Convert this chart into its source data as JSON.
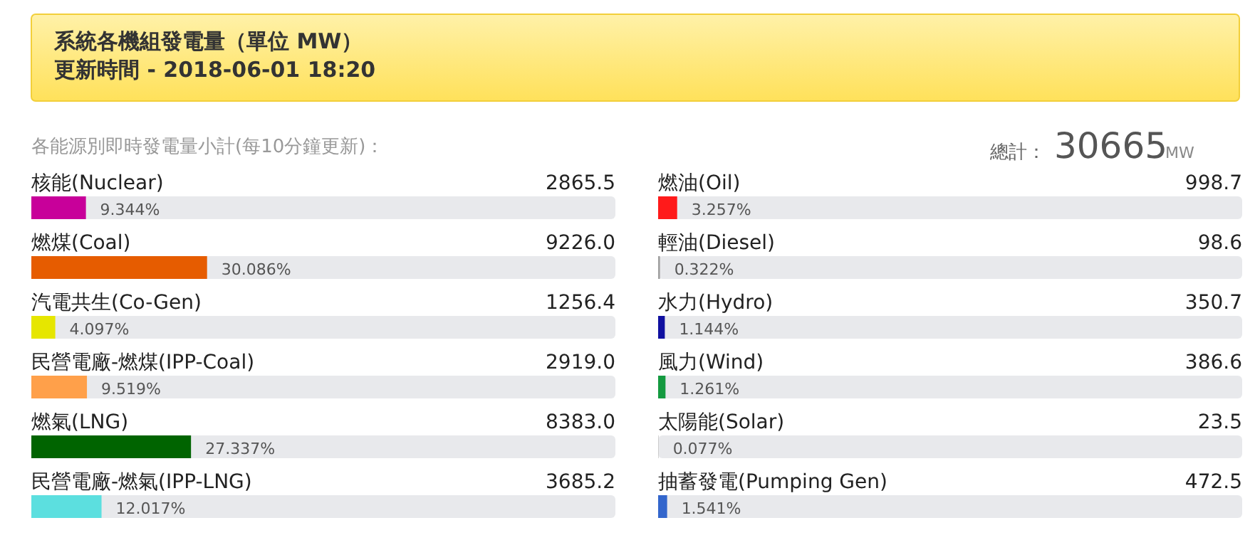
{
  "chart_data": [
    {
      "type": "bar",
      "orientation": "horizontal",
      "title": "系統各機組發電量（單位 MW）",
      "subtitle": "更新時間 - 2018-06-01 18:20",
      "categories": [
        "核能(Nuclear)",
        "燃煤(Coal)",
        "汽電共生(Co-Gen)",
        "民營電廠-燃煤(IPP-Coal)",
        "燃氣(LNG)",
        "民營電廠-燃氣(IPP-LNG)"
      ],
      "values": [
        9.344,
        30.086,
        4.097,
        9.519,
        27.337,
        12.017
      ],
      "value_labels": [
        "9.344%",
        "30.086%",
        "4.097%",
        "9.519%",
        "27.337%",
        "12.017%"
      ],
      "colors": [
        "#c8009a",
        "#e65c00",
        "#e6e600",
        "#ffa04a",
        "#006400",
        "#5cdfdf"
      ],
      "xlim": [
        0,
        100
      ],
      "annotations": [
        "各能源別即時發電量小計(每10分鐘更新)：",
        "2865.5",
        "9226.0",
        "1256.4",
        "2919.0",
        "8383.0",
        "3685.2"
      ]
    },
    {
      "type": "bar",
      "orientation": "horizontal",
      "categories": [
        "燃油(Oil)",
        "輕油(Diesel)",
        "水力(Hydro)",
        "風力(Wind)",
        "太陽能(Solar)",
        "抽蓄發電(Pumping Gen)"
      ],
      "values": [
        3.257,
        0.322,
        1.144,
        1.261,
        0.077,
        1.541
      ],
      "value_labels": [
        "3.257%",
        "0.322%",
        "1.144%",
        "1.261%",
        "0.077%",
        "1.541%"
      ],
      "colors": [
        "#ff1a1a",
        "#a0a0a0",
        "#1010a0",
        "#149a40",
        "#bbbbbb",
        "#3366cc"
      ],
      "xlim": [
        0,
        100
      ],
      "annotations": [
        "總計：",
        "30665",
        "MW",
        "998.7",
        "98.6",
        "350.7",
        "386.6",
        "23.5",
        "472.5"
      ]
    }
  ]
}
